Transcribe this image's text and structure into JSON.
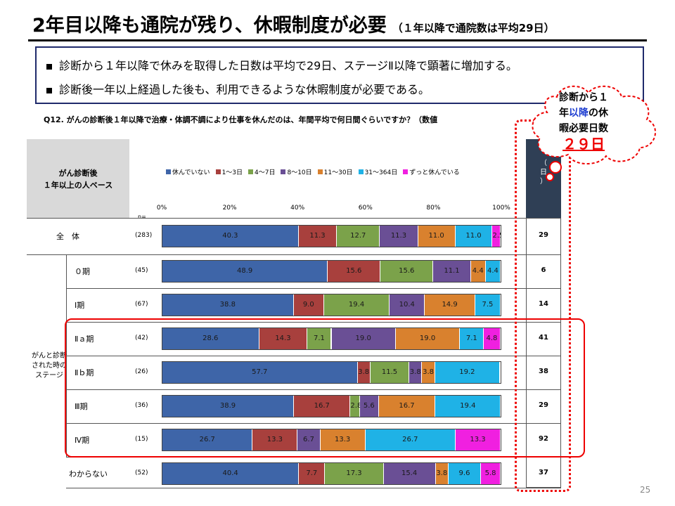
{
  "title": "2年目以降も通院が残り、休暇制度が必要",
  "title_note": "（１年以降で通院数は平均29日）",
  "summary": {
    "line1": "診断から１年以降で休みを取得した日数は平均で29日、ステージⅡ以降で顕著に増加する。",
    "line2": "診断後一年以上経過した後も、利用できるような休暇制度が必要である。"
  },
  "question": "Q12.  がんの診断後１年以降で治療・体調不調により仕事を休んだのは、年間平均で何日間ぐらいですか？（数値",
  "base_label_1": "がん診断後",
  "base_label_2": "１年以上の人ベース",
  "n_eq": "n=",
  "avg_header": "（\n日\n）",
  "callout": {
    "line1": "診断から１",
    "line2a": "年",
    "line2b": "以降",
    "line2c": "の休",
    "line3": "暇必要日数",
    "days": "２９日"
  },
  "stage_group_label": "がんと診断\nされた時の\nステージ",
  "page_number": "25",
  "colors": {
    "none": "#3e65a8",
    "d1_3": "#a8403d",
    "d4_7": "#7ba24a",
    "d8_10": "#6a4f95",
    "d11_30": "#d9812e",
    "d31_364": "#1fb2e6",
    "always": "#f020e0",
    "red_highlight": "#ee0000"
  },
  "chart_data": {
    "type": "bar",
    "orientation": "horizontal",
    "stacked": true,
    "xlim": [
      0,
      100
    ],
    "x_ticks": [
      "0%",
      "20%",
      "40%",
      "60%",
      "80%",
      "100%"
    ],
    "legend_position": "top",
    "categories": [
      "全　体",
      "０期",
      "Ⅰ期",
      "Ⅱａ期",
      "Ⅱｂ期",
      "Ⅲ期",
      "Ⅳ期",
      "わからない"
    ],
    "n": [
      "(283)",
      "(45)",
      "(67)",
      "(42)",
      "(26)",
      "(36)",
      "(15)",
      "(52)"
    ],
    "series": [
      {
        "name": "休んでいない",
        "color_key": "none",
        "values": [
          40.3,
          48.9,
          38.8,
          28.6,
          57.7,
          38.9,
          26.7,
          40.4
        ]
      },
      {
        "name": "1～3日",
        "color_key": "d1_3",
        "values": [
          11.3,
          15.6,
          9.0,
          14.3,
          3.8,
          16.7,
          13.3,
          7.7
        ]
      },
      {
        "name": "4～7日",
        "color_key": "d4_7",
        "values": [
          12.7,
          15.6,
          19.4,
          7.1,
          11.5,
          2.8,
          0,
          17.3
        ]
      },
      {
        "name": "8～10日",
        "color_key": "d8_10",
        "values": [
          11.3,
          11.1,
          10.4,
          19.0,
          3.8,
          5.6,
          6.7,
          15.4
        ]
      },
      {
        "name": "11～30日",
        "color_key": "d11_30",
        "values": [
          11.0,
          4.4,
          14.9,
          19.0,
          3.8,
          16.7,
          13.3,
          3.8
        ]
      },
      {
        "name": "31～364日",
        "color_key": "d31_364",
        "values": [
          11.0,
          4.4,
          7.5,
          7.1,
          19.2,
          19.4,
          26.7,
          9.6
        ]
      },
      {
        "name": "ずっと休んでいる",
        "color_key": "always",
        "values": [
          2.5,
          0,
          0,
          4.8,
          0,
          0,
          13.3,
          5.8
        ]
      }
    ],
    "averages": [
      "29",
      "6",
      "14",
      "41",
      "38",
      "29",
      "92",
      "37"
    ]
  }
}
